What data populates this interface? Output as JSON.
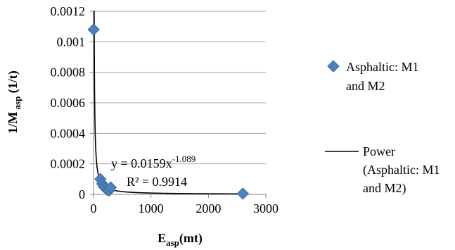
{
  "chart_data": {
    "type": "scatter",
    "title": "",
    "xlabel": {
      "main": "E",
      "sub": "asp",
      "rest": "(mt)"
    },
    "ylabel": {
      "main": "1/M",
      "sub": " asp",
      "rest": " (1/t)"
    },
    "xlim": [
      0,
      3000
    ],
    "ylim": [
      0,
      0.0012
    ],
    "x_ticks": [
      0,
      1000,
      2000,
      3000
    ],
    "x_tick_labels": [
      "0",
      "1000",
      "2000",
      "3000"
    ],
    "y_ticks": [
      0,
      0.0002,
      0.0004,
      0.0006,
      0.0008,
      0.001,
      0.0012
    ],
    "y_tick_labels": [
      "0",
      "0.0002",
      "0.0004",
      "0.0006",
      "0.0008",
      "0.001",
      "0.0012"
    ],
    "grid": "horizontal",
    "legend_position": "right",
    "series": [
      {
        "name": "Asphaltic: M1 and M2",
        "legend_lines": [
          "Asphaltic: M1",
          "and M2"
        ],
        "marker": "diamond",
        "color": "#4f81bd",
        "points": [
          {
            "x": 2,
            "y": 0.00108
          },
          {
            "x": 120,
            "y": 0.0001
          },
          {
            "x": 150,
            "y": 7e-05
          },
          {
            "x": 180,
            "y": 5e-05
          },
          {
            "x": 210,
            "y": 4e-05
          },
          {
            "x": 240,
            "y": 3e-05
          },
          {
            "x": 270,
            "y": 2.5e-05
          },
          {
            "x": 300,
            "y": 4.5e-05
          },
          {
            "x": 2600,
            "y": 5e-06
          }
        ]
      }
    ],
    "trendline": {
      "name": "Power (Asphaltic: M1 and M2)",
      "legend_lines": [
        "Power",
        "(Asphaltic: M1",
        "and M2)"
      ],
      "type": "power",
      "coefficient": 0.0159,
      "exponent": -1.089,
      "color": "#000000",
      "x_range": [
        2,
        2600
      ]
    },
    "annotations": {
      "equation_prefix": "y = 0.0159x",
      "equation_exponent": "-1.089",
      "r_squared": "R² = 0.9914"
    }
  }
}
